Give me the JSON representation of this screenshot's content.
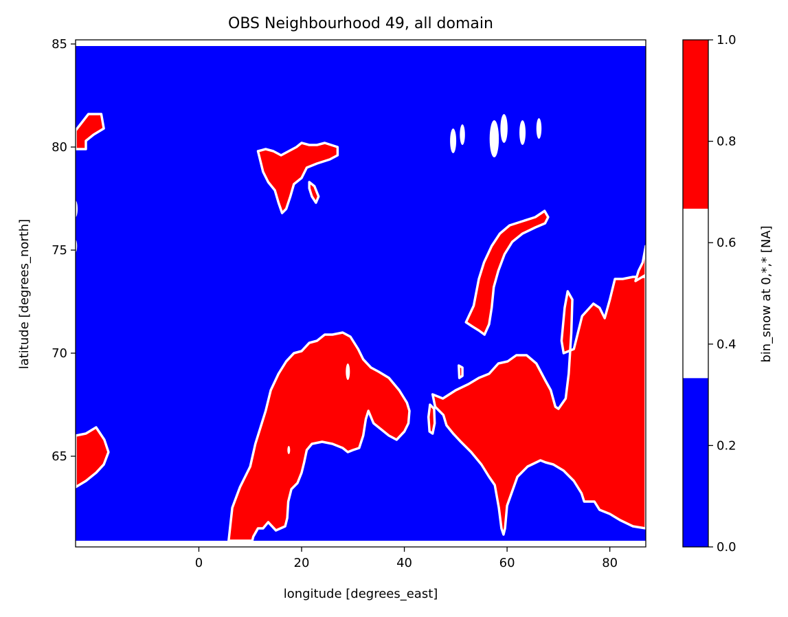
{
  "colors": {
    "ocean": "#0000ff",
    "land": "#ff0000",
    "mid": "#ffffff",
    "frame": "#000000"
  },
  "chart_data": {
    "type": "heatmap",
    "title": "OBS Neighbourhood 49, all domain",
    "xlabel": "longitude [degrees_east]",
    "ylabel": "latitude [degrees_north]",
    "xlim": [
      -24.0,
      87.0
    ],
    "ylim": [
      60.6,
      85.2
    ],
    "xticks": [
      0,
      20,
      40,
      60,
      80
    ],
    "yticks": [
      65,
      70,
      75,
      80,
      85
    ],
    "colorbar": {
      "label": "bin_snow at 0,*,* [NA]",
      "ticks": [
        0.0,
        0.2,
        0.4,
        0.6,
        0.8,
        1.0
      ],
      "tick_labels": [
        "0.0",
        "0.2",
        "0.4",
        "0.6",
        "0.8",
        "1.0"
      ],
      "bins": [
        {
          "from": 0.0,
          "to": 0.333,
          "color": "#0000ff"
        },
        {
          "from": 0.333,
          "to": 0.667,
          "color": "#ffffff"
        },
        {
          "from": 0.667,
          "to": 1.0,
          "color": "#ff0000"
        }
      ]
    },
    "data_extent": {
      "lon": [
        -24.0,
        87.0
      ],
      "lat": [
        60.9,
        84.9
      ]
    },
    "regions": [
      {
        "name": "scandinavia",
        "value": 1,
        "points": [
          [
            5.8,
            60.9
          ],
          [
            6.5,
            62.5
          ],
          [
            8,
            63.5
          ],
          [
            10,
            64.5
          ],
          [
            11,
            65.6
          ],
          [
            12,
            66.4
          ],
          [
            13,
            67.2
          ],
          [
            14,
            68.2
          ],
          [
            15.5,
            69
          ],
          [
            17,
            69.6
          ],
          [
            18.5,
            70
          ],
          [
            20,
            70.1
          ],
          [
            21.5,
            70.5
          ],
          [
            23,
            70.6
          ],
          [
            24.5,
            70.9
          ],
          [
            26,
            70.9
          ],
          [
            28,
            71
          ],
          [
            29.5,
            70.8
          ],
          [
            31,
            70.2
          ],
          [
            32,
            69.7
          ],
          [
            33.5,
            69.3
          ],
          [
            35,
            69.1
          ],
          [
            37,
            68.8
          ],
          [
            39,
            68.2
          ],
          [
            40.5,
            67.6
          ],
          [
            41,
            67.2
          ],
          [
            40.8,
            66.6
          ],
          [
            40,
            66.2
          ],
          [
            38.5,
            65.8
          ],
          [
            37,
            66
          ],
          [
            35.5,
            66.3
          ],
          [
            34,
            66.6
          ],
          [
            33,
            67.2
          ],
          [
            32.5,
            66.8
          ],
          [
            32,
            66
          ],
          [
            31.2,
            65.4
          ],
          [
            30,
            65.3
          ],
          [
            29,
            65.2
          ],
          [
            28,
            65.4
          ],
          [
            26,
            65.6
          ],
          [
            24,
            65.7
          ],
          [
            22,
            65.6
          ],
          [
            21,
            65.3
          ],
          [
            20.5,
            64.7
          ],
          [
            20,
            64.2
          ],
          [
            19.2,
            63.7
          ],
          [
            18,
            63.4
          ],
          [
            17.4,
            62.8
          ],
          [
            17.2,
            62
          ],
          [
            16.8,
            61.6
          ],
          [
            15,
            61.4
          ],
          [
            13.5,
            61.8
          ],
          [
            12.5,
            61.5
          ],
          [
            11.5,
            61.5
          ],
          [
            10.6,
            61.1
          ],
          [
            10.4,
            60.9
          ]
        ]
      },
      {
        "name": "svalbard",
        "value": 1,
        "points": [
          [
            11.5,
            79.8
          ],
          [
            13,
            79.9
          ],
          [
            14.5,
            79.8
          ],
          [
            16,
            79.6
          ],
          [
            17.5,
            79.8
          ],
          [
            19,
            80
          ],
          [
            20,
            80.2
          ],
          [
            21.5,
            80.1
          ],
          [
            23,
            80.1
          ],
          [
            24.5,
            80.2
          ],
          [
            27,
            80.0
          ],
          [
            27,
            79.6
          ],
          [
            25.5,
            79.4
          ],
          [
            23,
            79.2
          ],
          [
            21,
            79.0
          ],
          [
            20,
            78.5
          ],
          [
            18.5,
            78.2
          ],
          [
            17.8,
            77.6
          ],
          [
            17.0,
            77.0
          ],
          [
            16.2,
            76.8
          ],
          [
            15.5,
            77.3
          ],
          [
            14.8,
            77.9
          ],
          [
            13.5,
            78.3
          ],
          [
            12.5,
            78.8
          ],
          [
            12,
            79.3
          ]
        ]
      },
      {
        "name": "svalbard-south",
        "value": 1,
        "points": [
          [
            21.5,
            78.3
          ],
          [
            22.5,
            78.1
          ],
          [
            23.3,
            77.6
          ],
          [
            22.8,
            77.3
          ],
          [
            22.0,
            77.6
          ],
          [
            21.5,
            78.0
          ]
        ]
      },
      {
        "name": "novaya-zemlya",
        "value": 1,
        "points": [
          [
            52,
            71.5
          ],
          [
            53.5,
            72.3
          ],
          [
            54.5,
            73.6
          ],
          [
            55.5,
            74.4
          ],
          [
            57,
            75.2
          ],
          [
            58.6,
            75.8
          ],
          [
            60.5,
            76.2
          ],
          [
            63,
            76.4
          ],
          [
            65.5,
            76.6
          ],
          [
            67.3,
            76.9
          ],
          [
            68,
            76.6
          ],
          [
            67.4,
            76.3
          ],
          [
            65.5,
            76.1
          ],
          [
            63,
            75.8
          ],
          [
            61,
            75.4
          ],
          [
            59.5,
            74.8
          ],
          [
            58.3,
            74.0
          ],
          [
            57.4,
            73.2
          ],
          [
            57,
            72.2
          ],
          [
            56.5,
            71.4
          ],
          [
            55.6,
            70.9
          ],
          [
            54.5,
            71.1
          ],
          [
            53.2,
            71.3
          ]
        ]
      },
      {
        "name": "russia-mainland",
        "value": 1,
        "points": [
          [
            45.5,
            68.0
          ],
          [
            47.5,
            67.8
          ],
          [
            50,
            68.2
          ],
          [
            52.5,
            68.5
          ],
          [
            54.5,
            68.8
          ],
          [
            56.5,
            69.0
          ],
          [
            58.3,
            69.5
          ],
          [
            60.1,
            69.6
          ],
          [
            61.8,
            69.9
          ],
          [
            63.8,
            69.9
          ],
          [
            65.7,
            69.5
          ],
          [
            67.4,
            68.7
          ],
          [
            68.5,
            68.2
          ],
          [
            69.4,
            67.4
          ],
          [
            70,
            67.3
          ],
          [
            71.4,
            67.8
          ],
          [
            72.0,
            69.0
          ],
          [
            72.5,
            71.0
          ],
          [
            72.7,
            72.6
          ],
          [
            71.8,
            73.0
          ],
          [
            71.2,
            72.2
          ],
          [
            70.6,
            70.6
          ],
          [
            71,
            70.0
          ],
          [
            73,
            70.2
          ],
          [
            74.6,
            71.8
          ],
          [
            76.8,
            72.4
          ],
          [
            78,
            72.2
          ],
          [
            79,
            71.7
          ],
          [
            80,
            72.6
          ],
          [
            81,
            73.6
          ],
          [
            82.5,
            73.6
          ],
          [
            84.5,
            73.7
          ],
          [
            86,
            73.7
          ],
          [
            87,
            73.7
          ],
          [
            87,
            61.5
          ],
          [
            84.5,
            61.6
          ],
          [
            82,
            61.9
          ],
          [
            80,
            62.2
          ],
          [
            78,
            62.4
          ],
          [
            77,
            62.8
          ],
          [
            76,
            62.8
          ],
          [
            75,
            62.8
          ],
          [
            74.5,
            63.2
          ],
          [
            73,
            63.8
          ],
          [
            71,
            64.3
          ],
          [
            69,
            64.6
          ],
          [
            67.5,
            64.7
          ],
          [
            66.5,
            64.8
          ],
          [
            64,
            64.5
          ],
          [
            62,
            64.0
          ],
          [
            61,
            63.3
          ],
          [
            60,
            62.6
          ],
          [
            59.6,
            61.5
          ],
          [
            59.3,
            61.2
          ],
          [
            58.9,
            61.5
          ],
          [
            58.4,
            62.5
          ],
          [
            57.6,
            63.6
          ],
          [
            56.5,
            64.0
          ],
          [
            55,
            64.6
          ],
          [
            53,
            65.2
          ],
          [
            51,
            65.7
          ],
          [
            49.5,
            66.1
          ],
          [
            48.2,
            66.5
          ],
          [
            47.6,
            67
          ],
          [
            46,
            67.4
          ]
        ]
      },
      {
        "name": "kanin",
        "value": 1,
        "points": [
          [
            45.0,
            67.5
          ],
          [
            45.8,
            67.3
          ],
          [
            45.9,
            66.6
          ],
          [
            45.5,
            66.1
          ],
          [
            44.9,
            66.2
          ],
          [
            44.7,
            66.9
          ]
        ]
      },
      {
        "name": "kolguev",
        "value": 1,
        "points": [
          [
            50.6,
            69.4
          ],
          [
            51.3,
            69.3
          ],
          [
            51.3,
            68.9
          ],
          [
            50.7,
            68.8
          ]
        ]
      },
      {
        "name": "greenland",
        "value": 1,
        "points": [
          [
            -24,
            80.8
          ],
          [
            -21.5,
            81.6
          ],
          [
            -19,
            81.6
          ],
          [
            -18.5,
            80.9
          ],
          [
            -20.5,
            80.6
          ],
          [
            -22,
            80.3
          ],
          [
            -22,
            79.9
          ],
          [
            -24,
            79.9
          ]
        ]
      },
      {
        "name": "iceland",
        "value": 1,
        "points": [
          [
            -24,
            66.0
          ],
          [
            -22,
            66.1
          ],
          [
            -20,
            66.4
          ],
          [
            -18.4,
            65.8
          ],
          [
            -17.6,
            65.2
          ],
          [
            -18.5,
            64.6
          ],
          [
            -20,
            64.2
          ],
          [
            -22,
            63.8
          ],
          [
            -24,
            63.5
          ]
        ]
      },
      {
        "name": "severnaya-zemlya",
        "value": 1,
        "points": [
          [
            85,
            73.5
          ],
          [
            87,
            73.8
          ],
          [
            87,
            75.2
          ],
          [
            86.4,
            74.4
          ],
          [
            85.6,
            74
          ]
        ]
      }
    ],
    "white_islets": [
      {
        "lon": 49.5,
        "lat": 80.3,
        "r": 0.6
      },
      {
        "lon": 51.3,
        "lat": 80.6,
        "r": 0.5
      },
      {
        "lon": 57.5,
        "lat": 80.4,
        "r": 0.9
      },
      {
        "lon": 59.4,
        "lat": 80.9,
        "r": 0.7
      },
      {
        "lon": 63.0,
        "lat": 80.7,
        "r": 0.6
      },
      {
        "lon": 66.2,
        "lat": 80.9,
        "r": 0.5
      },
      {
        "lon": -24.0,
        "lat": 77.0,
        "r": 0.4
      },
      {
        "lon": -24.0,
        "lat": 75.2,
        "r": 0.3
      },
      {
        "lon": 29.0,
        "lat": 69.1,
        "r": 0.4
      },
      {
        "lon": 17.5,
        "lat": 65.3,
        "r": 0.2
      }
    ]
  }
}
